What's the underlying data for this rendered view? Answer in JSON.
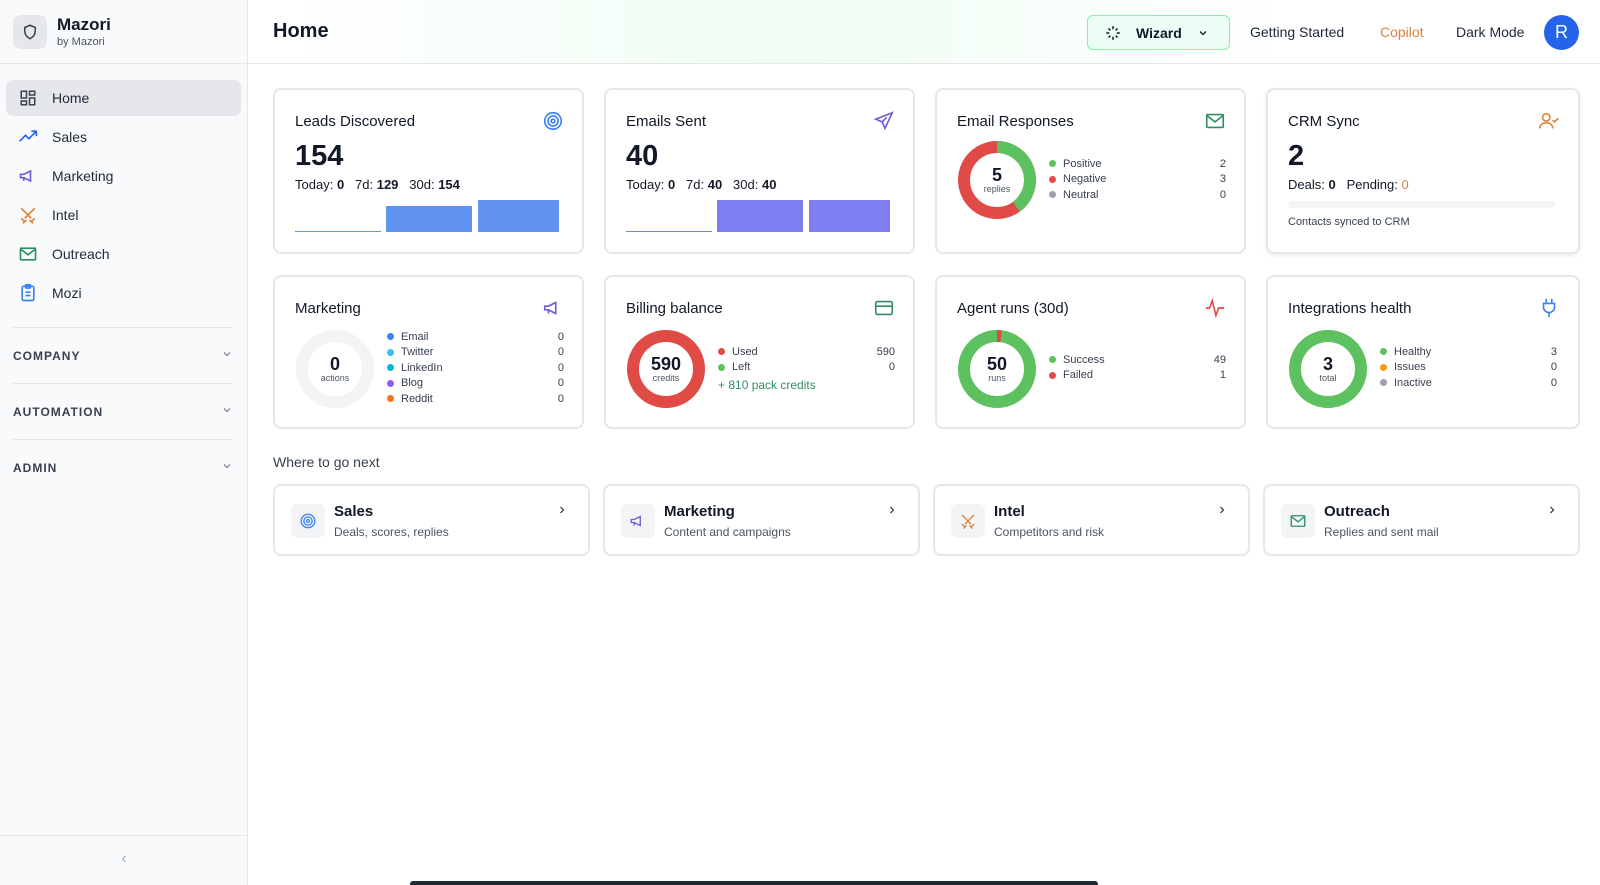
{
  "brand": {
    "name": "Mazori",
    "sub": "by Mazori"
  },
  "nav": [
    {
      "label": "Home",
      "icon": "grid-icon"
    },
    {
      "label": "Sales",
      "icon": "trend-icon"
    },
    {
      "label": "Marketing",
      "icon": "megaphone-icon"
    },
    {
      "label": "Intel",
      "icon": "swords-icon"
    },
    {
      "label": "Outreach",
      "icon": "mail-icon"
    },
    {
      "label": "Mozi",
      "icon": "clipboard-icon"
    }
  ],
  "sections": {
    "company": "COMPANY",
    "automation": "AUTOMATION",
    "admin": "ADMIN"
  },
  "header": {
    "title": "Home",
    "wizard": "Wizard",
    "getting_started": "Getting Started",
    "copilot": "Copilot",
    "dark_mode": "Dark Mode",
    "avatar": "R"
  },
  "leads": {
    "title": "Leads Discovered",
    "value": "154",
    "today_label": "Today:",
    "today": "0",
    "d7_label": "7d:",
    "d7": "129",
    "d30_label": "30d:",
    "d30": "154"
  },
  "emails": {
    "title": "Emails Sent",
    "value": "40",
    "today_label": "Today:",
    "today": "0",
    "d7_label": "7d:",
    "d7": "40",
    "d30_label": "30d:",
    "d30": "40"
  },
  "responses": {
    "title": "Email Responses",
    "value": "5",
    "unit": "replies",
    "items": [
      {
        "label": "Positive",
        "value": "2"
      },
      {
        "label": "Negative",
        "value": "3"
      },
      {
        "label": "Neutral",
        "value": "0"
      }
    ]
  },
  "crm": {
    "title": "CRM Sync",
    "value": "2",
    "deals_label": "Deals:",
    "deals": "0",
    "pending_label": "Pending:",
    "pending": "0",
    "note": "Contacts synced to CRM"
  },
  "marketing": {
    "title": "Marketing",
    "value": "0",
    "unit": "actions",
    "items": [
      {
        "label": "Email",
        "value": "0"
      },
      {
        "label": "Twitter",
        "value": "0"
      },
      {
        "label": "LinkedIn",
        "value": "0"
      },
      {
        "label": "Blog",
        "value": "0"
      },
      {
        "label": "Reddit",
        "value": "0"
      }
    ]
  },
  "billing": {
    "title": "Billing balance",
    "value": "590",
    "unit": "credits",
    "items": [
      {
        "label": "Used",
        "value": "590"
      },
      {
        "label": "Left",
        "value": "0"
      }
    ],
    "pack": "+ 810 pack credits"
  },
  "agents": {
    "title": "Agent runs (30d)",
    "value": "50",
    "unit": "runs",
    "items": [
      {
        "label": "Success",
        "value": "49"
      },
      {
        "label": "Failed",
        "value": "1"
      }
    ]
  },
  "integrations": {
    "title": "Integrations health",
    "value": "3",
    "unit": "total",
    "items": [
      {
        "label": "Healthy",
        "value": "3"
      },
      {
        "label": "Issues",
        "value": "0"
      },
      {
        "label": "Inactive",
        "value": "0"
      }
    ]
  },
  "next": {
    "title": "Where to go next",
    "cards": [
      {
        "name": "Sales",
        "desc": "Deals, scores, replies"
      },
      {
        "name": "Marketing",
        "desc": "Content and campaigns"
      },
      {
        "name": "Intel",
        "desc": "Competitors and risk"
      },
      {
        "name": "Outreach",
        "desc": "Replies and sent mail"
      }
    ]
  },
  "colors": {
    "blue_bar": "#6092f0",
    "purple_bar": "#7f7ef0",
    "green": "#5ec160",
    "red": "#e04b45",
    "gray": "#9ca3af",
    "orange": "#e0823a"
  }
}
